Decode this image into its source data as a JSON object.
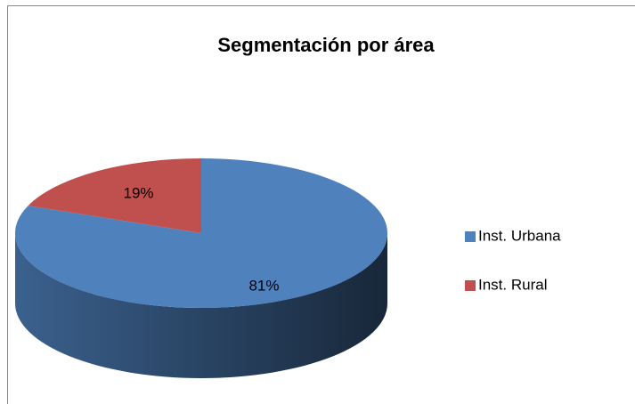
{
  "chart_data": {
    "type": "pie",
    "title": "Segmentación por área",
    "categories": [
      "Inst. Urbana",
      "Inst. Rural"
    ],
    "values": [
      81,
      19
    ],
    "value_labels": [
      "81%",
      "19%"
    ],
    "colors": [
      "#4f81bd",
      "#c0504d"
    ]
  }
}
